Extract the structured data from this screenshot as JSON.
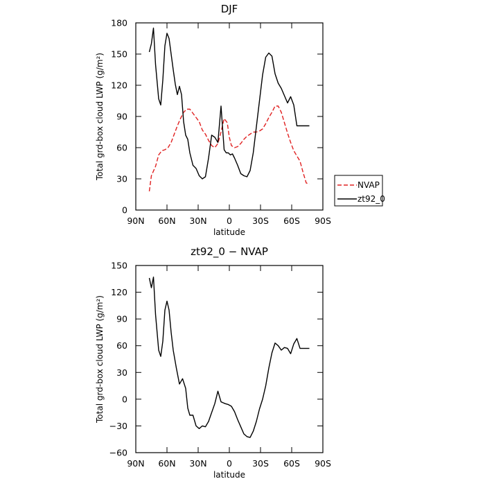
{
  "chart_data": [
    {
      "type": "line",
      "title": "DJF",
      "xlabel": "latitude",
      "ylabel": "Total grd-box cloud LWP (g/m²)",
      "xlim": [
        90,
        -90
      ],
      "ylim": [
        0,
        180
      ],
      "xticks": [
        90,
        60,
        30,
        0,
        -30,
        -60,
        -90
      ],
      "xticklabels": [
        "90N",
        "60N",
        "30N",
        "0",
        "30S",
        "60S",
        "90S"
      ],
      "yticks": [
        0,
        30,
        60,
        90,
        120,
        150,
        180
      ],
      "yticklabels": [
        "0",
        "30",
        "60",
        "90",
        "120",
        "150",
        "180"
      ],
      "grid": false,
      "legend_position": "outside-right",
      "series": [
        {
          "name": "NVAP",
          "color": "#e02020",
          "dash": "dashed",
          "x": [
            77,
            75,
            71,
            68,
            65,
            62,
            59,
            56,
            53,
            50,
            47,
            44,
            41,
            38,
            35,
            32,
            29,
            26,
            23,
            20,
            17,
            14,
            11,
            8,
            5,
            2,
            0,
            -2,
            -5,
            -8,
            -11,
            -14,
            -17,
            -20,
            -23,
            -26,
            -29,
            -32,
            -35,
            -38,
            -41,
            -44,
            -47,
            -50,
            -53,
            -56,
            -59,
            -62,
            -65,
            -68,
            -71,
            -74,
            -77
          ],
          "y": [
            18,
            33,
            42,
            53,
            57,
            58,
            60,
            65,
            73,
            81,
            88,
            94,
            97,
            97,
            93,
            89,
            85,
            77,
            73,
            67,
            62,
            60,
            64,
            75,
            88,
            84,
            70,
            62,
            60,
            61,
            64,
            68,
            71,
            73,
            75,
            75,
            76,
            78,
            83,
            89,
            94,
            100,
            100,
            94,
            84,
            74,
            65,
            57,
            52,
            47,
            36,
            26,
            25
          ]
        },
        {
          "name": "zt92_0",
          "color": "#000000",
          "dash": "solid",
          "x": [
            77,
            75,
            73,
            71,
            68,
            66,
            64,
            62,
            60,
            58,
            56,
            54,
            52,
            50,
            48,
            46,
            44,
            42,
            40,
            38,
            35,
            32,
            29,
            26,
            23,
            20,
            17,
            14,
            11,
            8,
            5,
            3,
            1,
            -1,
            -3,
            -5,
            -8,
            -11,
            -14,
            -17,
            -20,
            -23,
            -26,
            -29,
            -32,
            -35,
            -38,
            -41,
            -44,
            -47,
            -50,
            -53,
            -56,
            -59,
            -62,
            -65,
            -68,
            -71,
            -74,
            -77
          ],
          "y": [
            152,
            160,
            175,
            140,
            107,
            101,
            125,
            158,
            170,
            165,
            150,
            135,
            121,
            111,
            119,
            111,
            85,
            72,
            68,
            55,
            43,
            40,
            33,
            30,
            32,
            50,
            72,
            70,
            65,
            100,
            58,
            55,
            55,
            53,
            54,
            50,
            43,
            35,
            33,
            32,
            38,
            55,
            80,
            105,
            130,
            147,
            151,
            148,
            131,
            122,
            117,
            110,
            103,
            109,
            101,
            81,
            81,
            81,
            81,
            81
          ]
        }
      ]
    },
    {
      "type": "line",
      "title": "zt92_0 − NVAP",
      "xlabel": "latitude",
      "ylabel": "Total grd-box cloud LWP (g/m²)",
      "xlim": [
        90,
        -90
      ],
      "ylim": [
        -60,
        150
      ],
      "xticks": [
        90,
        60,
        30,
        0,
        -30,
        -60,
        -90
      ],
      "xticklabels": [
        "90N",
        "60N",
        "30N",
        "0",
        "30S",
        "60S",
        "90S"
      ],
      "yticks": [
        -60,
        -30,
        0,
        30,
        60,
        90,
        120,
        150
      ],
      "yticklabels": [
        "−60",
        "−30",
        "0",
        "30",
        "60",
        "90",
        "120",
        "150"
      ],
      "grid": false,
      "series": [
        {
          "color": "#000000",
          "dash": "solid",
          "x": [
            77,
            75,
            73,
            71,
            68,
            66,
            64,
            62,
            60,
            58,
            56,
            54,
            51,
            48,
            45,
            42,
            40,
            38,
            35,
            32,
            29,
            26,
            23,
            20,
            17,
            14,
            11,
            8,
            6,
            4,
            1,
            -2,
            -5,
            -8,
            -11,
            -14,
            -17,
            -20,
            -23,
            -26,
            -29,
            -32,
            -35,
            -38,
            -41,
            -44,
            -47,
            -50,
            -53,
            -56,
            -59,
            -62,
            -65,
            -68,
            -71,
            -74,
            -77
          ],
          "y": [
            136,
            125,
            137,
            95,
            55,
            48,
            65,
            100,
            110,
            100,
            75,
            55,
            35,
            17,
            23,
            12,
            -10,
            -18,
            -18,
            -30,
            -33,
            -30,
            -31,
            -25,
            -15,
            -5,
            9,
            -3,
            -4,
            -5,
            -6,
            -8,
            -14,
            -23,
            -31,
            -39,
            -42,
            -43,
            -36,
            -25,
            -11,
            0,
            15,
            35,
            52,
            63,
            60,
            55,
            58,
            57,
            51,
            62,
            68,
            57,
            57,
            57,
            57
          ]
        }
      ]
    }
  ],
  "legend": {
    "entries": [
      {
        "label": "NVAP",
        "color": "#e02020",
        "dash": "dashed"
      },
      {
        "label": "zt92_0",
        "color": "#000000",
        "dash": "solid"
      }
    ]
  }
}
